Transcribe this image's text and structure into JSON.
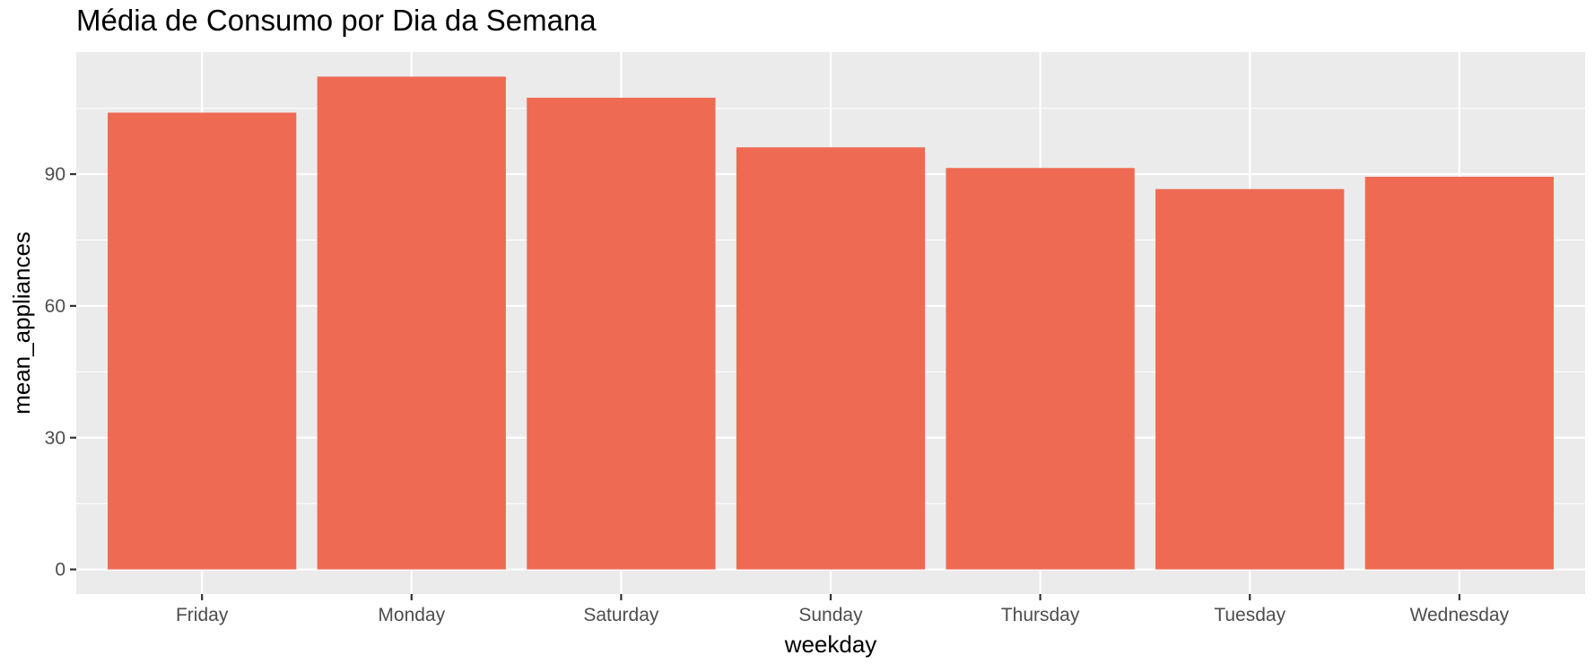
{
  "chart_data": {
    "type": "bar",
    "title": "Média de Consumo por Dia da Semana",
    "xlabel": "weekday",
    "ylabel": "mean_appliances",
    "categories": [
      "Friday",
      "Monday",
      "Saturday",
      "Sunday",
      "Thursday",
      "Tuesday",
      "Wednesday"
    ],
    "values": [
      104.0,
      112.2,
      107.4,
      96.1,
      91.4,
      86.6,
      89.4
    ],
    "ylim": [
      -5.6,
      117.8
    ],
    "yticks": [
      0,
      30,
      60,
      90
    ],
    "ytick_labels": [
      "0",
      "30",
      "60",
      "90"
    ],
    "grid": true,
    "legend": "none",
    "colors": {
      "bar": "#ee6a52",
      "panel": "#ebebeb",
      "grid": "#ffffff",
      "tick_label": "#4d4d4d",
      "text": "#000000"
    }
  }
}
